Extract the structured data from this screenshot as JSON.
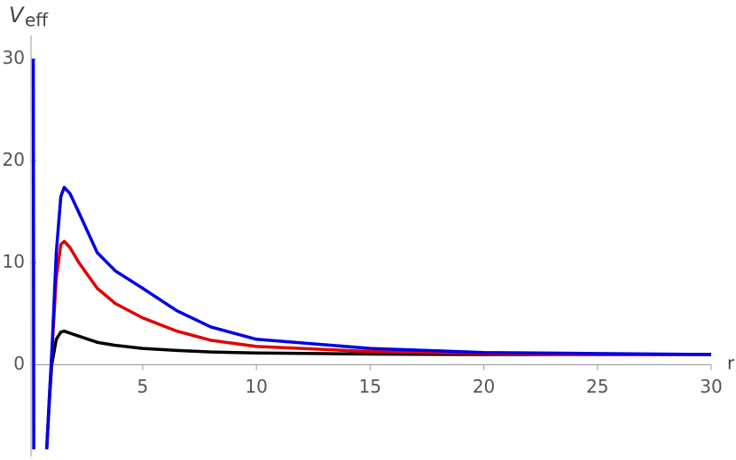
{
  "chart_data": {
    "type": "line",
    "ylabel": "V",
    "ylabel_sub": "eff",
    "xlabel": "r",
    "x": [
      0.19,
      0.21,
      0.5,
      0.78,
      0.9,
      1.0,
      1.2,
      1.4,
      1.55,
      1.8,
      2.2,
      3,
      3.8,
      5,
      6.5,
      8,
      10,
      15,
      20,
      25,
      30
    ],
    "series": [
      {
        "color": "#000000",
        "values": [
          null,
          null,
          null,
          -8.3,
          -3.5,
          0,
          2.5,
          3.2,
          3.3,
          3.1,
          2.8,
          2.2,
          1.9,
          1.6,
          1.4,
          1.25,
          1.15,
          1.05,
          1.0,
          1.0,
          1.0
        ]
      },
      {
        "color": "#e00000",
        "values": [
          null,
          null,
          null,
          -8.3,
          -3,
          1,
          8.5,
          11.8,
          12.1,
          11.5,
          10,
          7.5,
          6,
          4.6,
          3.3,
          2.4,
          1.8,
          1.3,
          1.1,
          1.0,
          1.0
        ]
      },
      {
        "color": "#0000e6",
        "values": [
          30,
          -8.3,
          null,
          -8.3,
          -3,
          1,
          11,
          16.5,
          17.4,
          16.8,
          14.9,
          11,
          9.2,
          7.5,
          5.3,
          3.7,
          2.5,
          1.6,
          1.2,
          1.1,
          1.0
        ]
      }
    ],
    "xlim": [
      0.09,
      30
    ],
    "ylim": [
      -8.3,
      32.3
    ],
    "xticks": [
      5,
      10,
      15,
      20,
      25,
      30
    ],
    "yticks": [
      0,
      10,
      20,
      30
    ]
  }
}
